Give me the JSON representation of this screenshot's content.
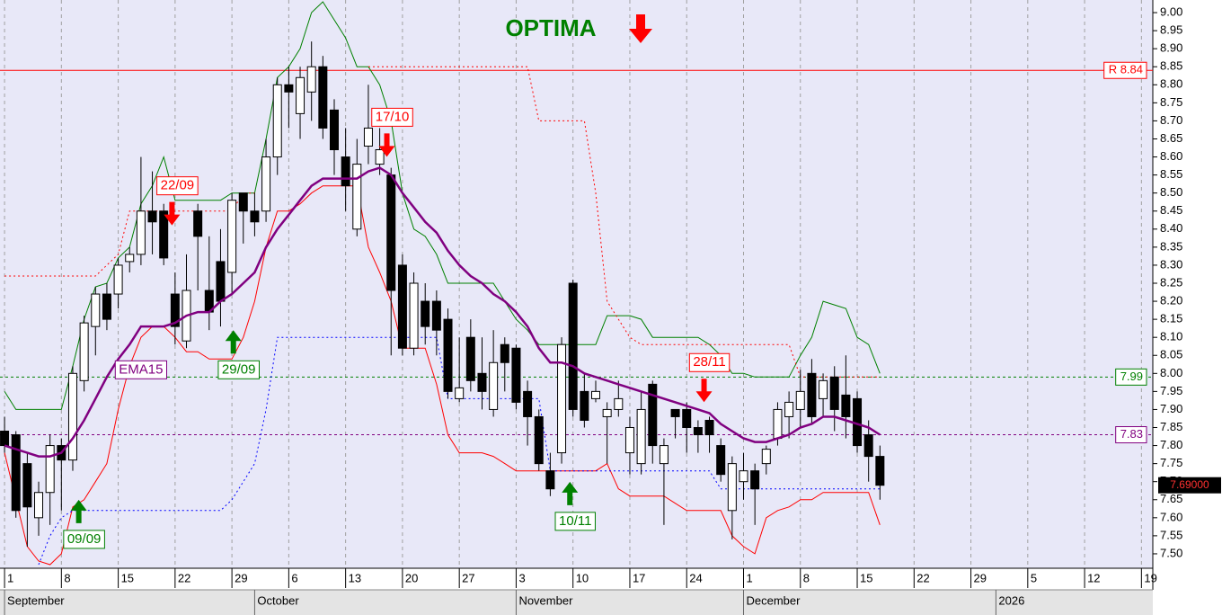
{
  "chart_data": {
    "type": "candlestick",
    "title": "OPTIMA",
    "x": [
      0,
      1,
      2,
      3,
      4,
      5,
      6,
      7,
      8,
      9,
      10,
      11,
      12,
      13,
      14,
      15,
      16,
      17,
      18,
      19,
      20,
      21,
      22,
      23,
      24,
      25,
      26,
      27,
      28,
      29,
      30,
      31,
      32,
      33,
      34,
      35,
      36,
      37,
      38,
      39,
      40,
      41,
      42,
      43,
      44,
      45,
      46,
      47,
      48,
      49,
      50,
      51,
      52,
      53,
      54,
      55,
      56,
      57,
      58,
      59,
      60,
      61,
      62,
      63,
      64,
      65,
      66,
      67,
      68,
      69,
      70,
      71,
      72,
      73,
      74,
      75,
      76,
      77
    ],
    "ohlc": {
      "open": [
        7.84,
        7.83,
        7.75,
        7.6,
        7.67,
        7.8,
        7.76,
        7.98,
        8.13,
        8.22,
        8.22,
        8.31,
        8.33,
        8.45,
        8.45,
        8.22,
        8.09,
        8.45,
        8.23,
        8.31,
        8.28,
        8.5,
        8.45,
        8.45,
        8.6,
        8.8,
        8.72,
        8.78,
        8.85,
        8.73,
        8.6,
        8.4,
        8.63,
        8.58,
        8.55,
        8.3,
        8.07,
        8.2,
        8.2,
        8.15,
        7.93,
        8.1,
        8.0,
        7.9,
        8.08,
        8.07,
        7.95,
        7.88,
        7.73,
        7.78,
        8.25,
        7.95,
        7.93,
        7.88,
        7.9,
        7.78,
        7.75,
        7.97,
        7.75,
        7.9,
        7.9,
        7.85,
        7.87,
        7.8,
        7.62,
        7.7,
        7.73,
        7.75,
        7.82,
        7.88,
        7.9,
        8.0,
        7.93,
        7.99,
        7.94,
        7.93,
        7.83,
        7.77
      ],
      "high": [
        7.88,
        7.84,
        7.78,
        7.7,
        7.83,
        7.82,
        8.02,
        8.16,
        8.24,
        8.25,
        8.32,
        8.35,
        8.6,
        8.56,
        8.47,
        8.28,
        8.33,
        8.47,
        8.38,
        8.4,
        8.5,
        8.5,
        8.5,
        8.65,
        8.82,
        8.85,
        8.85,
        8.92,
        8.88,
        8.76,
        8.68,
        8.65,
        8.8,
        8.68,
        8.57,
        8.33,
        8.28,
        8.25,
        8.23,
        8.18,
        8.1,
        8.15,
        8.1,
        8.12,
        8.1,
        8.08,
        7.98,
        7.9,
        7.78,
        8.1,
        8.26,
        8.0,
        7.98,
        7.92,
        7.98,
        7.88,
        7.95,
        7.98,
        7.82,
        7.9,
        7.92,
        7.87,
        7.88,
        7.82,
        7.77,
        7.78,
        7.75,
        7.8,
        7.92,
        7.95,
        8.01,
        8.04,
        8.0,
        8.02,
        8.05,
        7.95,
        7.87,
        7.8
      ],
      "low": [
        7.78,
        7.6,
        7.52,
        7.55,
        7.58,
        7.62,
        7.73,
        7.95,
        8.05,
        8.12,
        8.18,
        8.28,
        8.3,
        8.33,
        8.3,
        8.08,
        8.07,
        8.23,
        8.12,
        8.13,
        8.22,
        8.36,
        8.38,
        8.42,
        8.55,
        8.68,
        8.65,
        8.7,
        8.65,
        8.55,
        8.45,
        8.38,
        8.58,
        8.55,
        8.05,
        8.05,
        8.05,
        8.08,
        8.05,
        7.93,
        7.92,
        7.95,
        7.9,
        7.88,
        7.95,
        7.9,
        7.8,
        7.73,
        7.66,
        7.75,
        7.88,
        7.85,
        7.92,
        7.75,
        7.88,
        7.72,
        7.72,
        7.75,
        7.58,
        7.82,
        7.78,
        7.78,
        7.78,
        7.7,
        7.54,
        7.65,
        7.58,
        7.72,
        7.8,
        7.82,
        7.85,
        7.86,
        7.88,
        7.84,
        7.82,
        7.78,
        7.7,
        7.65
      ],
      "close": [
        7.8,
        7.62,
        7.63,
        7.67,
        7.8,
        7.76,
        8.0,
        8.14,
        8.22,
        8.15,
        8.3,
        8.33,
        8.45,
        8.42,
        8.32,
        8.13,
        8.23,
        8.38,
        8.17,
        8.2,
        8.48,
        8.45,
        8.42,
        8.6,
        8.8,
        8.78,
        8.82,
        8.85,
        8.68,
        8.62,
        8.52,
        8.58,
        8.68,
        8.62,
        8.23,
        8.07,
        8.25,
        8.13,
        8.12,
        7.95,
        7.96,
        7.98,
        7.95,
        8.03,
        8.03,
        7.92,
        7.88,
        7.75,
        7.68,
        8.08,
        7.9,
        7.87,
        7.95,
        7.9,
        7.93,
        7.85,
        7.9,
        7.8,
        7.8,
        7.88,
        7.85,
        7.83,
        7.83,
        7.72,
        7.75,
        7.73,
        7.68,
        7.79,
        7.9,
        7.92,
        7.95,
        7.88,
        7.98,
        7.9,
        7.88,
        7.8,
        7.77,
        7.69
      ]
    },
    "series": [
      {
        "name": "EMA15",
        "color": "#800080",
        "width": 2.5,
        "dash": "none",
        "values": [
          7.8,
          7.79,
          7.78,
          7.77,
          7.77,
          7.78,
          7.82,
          7.87,
          7.93,
          7.99,
          8.04,
          8.08,
          8.13,
          8.13,
          8.13,
          8.14,
          8.16,
          8.17,
          8.17,
          8.2,
          8.22,
          8.25,
          8.28,
          8.35,
          8.4,
          8.44,
          8.48,
          8.52,
          8.54,
          8.54,
          8.54,
          8.54,
          8.56,
          8.57,
          8.55,
          8.5,
          8.46,
          8.42,
          8.39,
          8.34,
          8.3,
          8.27,
          8.25,
          8.22,
          8.2,
          8.17,
          8.13,
          8.07,
          8.03,
          8.03,
          8.02,
          8.0,
          7.99,
          7.98,
          7.97,
          7.96,
          7.95,
          7.94,
          7.93,
          7.92,
          7.91,
          7.9,
          7.89,
          7.86,
          7.84,
          7.82,
          7.81,
          7.81,
          7.82,
          7.83,
          7.85,
          7.86,
          7.88,
          7.88,
          7.87,
          7.86,
          7.85,
          7.83
        ]
      },
      {
        "color": "#008000",
        "width": 1,
        "dash": "none",
        "values": [
          7.95,
          7.9,
          7.9,
          7.9,
          7.9,
          7.9,
          8.02,
          8.15,
          8.24,
          8.25,
          8.32,
          8.35,
          8.47,
          8.52,
          8.6,
          8.48,
          8.48,
          8.48,
          8.48,
          8.48,
          8.5,
          8.5,
          8.5,
          8.65,
          8.82,
          8.85,
          8.9,
          9.0,
          9.03,
          8.98,
          8.93,
          8.85,
          8.85,
          8.8,
          8.7,
          8.5,
          8.4,
          8.38,
          8.33,
          8.25,
          8.25,
          8.25,
          8.25,
          8.25,
          8.2,
          8.15,
          8.12,
          8.08,
          8.08,
          8.08,
          8.08,
          8.08,
          8.08,
          8.16,
          8.16,
          8.16,
          8.15,
          8.1,
          8.1,
          8.1,
          8.1,
          8.1,
          8.08,
          8.05,
          8.0,
          8.0,
          7.99,
          7.99,
          7.99,
          7.99,
          8.05,
          8.1,
          8.2,
          8.19,
          8.18,
          8.1,
          8.08,
          8.0
        ]
      },
      {
        "color": "#ff0000",
        "width": 1,
        "dash": "none",
        "values": [
          7.78,
          7.65,
          7.52,
          7.48,
          7.47,
          7.5,
          7.63,
          7.65,
          7.7,
          7.75,
          7.9,
          8.02,
          8.1,
          8.13,
          8.13,
          8.1,
          8.06,
          8.06,
          8.04,
          8.04,
          8.04,
          8.1,
          8.2,
          8.35,
          8.45,
          8.45,
          8.47,
          8.5,
          8.52,
          8.52,
          8.52,
          8.52,
          8.35,
          8.28,
          8.2,
          8.07,
          8.07,
          8.07,
          7.97,
          7.83,
          7.78,
          7.78,
          7.78,
          7.77,
          7.75,
          7.73,
          7.73,
          7.73,
          7.73,
          7.73,
          7.73,
          7.73,
          7.73,
          7.75,
          7.68,
          7.66,
          7.66,
          7.66,
          7.66,
          7.64,
          7.62,
          7.62,
          7.62,
          7.62,
          7.55,
          7.52,
          7.5,
          7.6,
          7.62,
          7.63,
          7.65,
          7.65,
          7.67,
          7.67,
          7.67,
          7.67,
          7.67,
          7.58
        ]
      },
      {
        "color": "#ff0000",
        "width": 1,
        "dash": "2,3",
        "values": [
          8.27,
          8.27,
          8.27,
          8.27,
          8.27,
          8.27,
          8.27,
          8.27,
          8.27,
          8.3,
          8.33,
          8.45,
          8.45,
          8.45,
          8.45,
          8.45,
          8.45,
          8.45,
          8.45,
          8.45,
          8.45,
          8.5,
          8.5,
          null,
          null,
          null,
          null,
          null,
          null,
          null,
          null,
          null,
          8.85,
          8.85,
          8.85,
          8.85,
          8.85,
          8.85,
          8.85,
          8.85,
          8.85,
          8.85,
          8.85,
          8.85,
          8.85,
          8.85,
          8.85,
          8.7,
          8.7,
          8.7,
          8.7,
          8.7,
          8.5,
          8.2,
          8.15,
          8.1,
          8.08,
          8.08,
          8.08,
          8.08,
          8.08,
          8.08,
          8.08,
          8.08,
          8.08,
          8.08,
          8.08,
          8.08,
          8.08,
          8.08,
          7.99,
          7.99,
          7.99,
          7.99,
          7.99,
          7.99,
          7.99,
          7.99
        ]
      },
      {
        "color": "#0000ff",
        "width": 1,
        "dash": "2,3",
        "values": [
          null,
          null,
          null,
          7.47,
          7.55,
          7.6,
          7.62,
          7.62,
          7.62,
          7.62,
          7.62,
          7.62,
          7.62,
          7.62,
          7.62,
          7.62,
          7.62,
          7.62,
          7.62,
          7.62,
          7.65,
          7.7,
          7.75,
          7.9,
          8.1,
          8.1,
          8.1,
          8.1,
          8.1,
          8.1,
          8.1,
          8.1,
          8.1,
          8.1,
          8.1,
          8.1,
          8.1,
          8.1,
          8.1,
          7.93,
          7.93,
          7.93,
          7.93,
          7.93,
          7.93,
          7.93,
          7.93,
          7.93,
          7.73,
          7.73,
          7.73,
          7.73,
          7.73,
          7.73,
          7.73,
          7.73,
          7.73,
          7.73,
          7.73,
          7.73,
          7.73,
          7.73,
          7.73,
          7.68,
          7.68,
          7.68,
          7.68,
          7.68,
          7.68,
          7.68,
          7.68,
          7.68,
          7.68,
          7.68,
          7.68,
          7.68,
          7.68,
          7.68
        ]
      }
    ],
    "levels": [
      {
        "value": 8.84,
        "label": "R 8.84",
        "color": "#ff0000",
        "dash": "none"
      },
      {
        "value": 7.99,
        "label": "7.99",
        "color": "#008000",
        "dash": "3,3"
      },
      {
        "value": 7.83,
        "label": "7.83",
        "color": "#800080",
        "dash": "3,3"
      }
    ],
    "last_price": {
      "value": 7.69,
      "label": "7.69000"
    },
    "annotations": [
      {
        "text": "22/09",
        "x": 15.2,
        "y": 8.52,
        "color": "#ff0000",
        "arrow": "down"
      },
      {
        "text": "17/10",
        "x": 34.1,
        "y": 8.71,
        "color": "#ff0000",
        "arrow": "down"
      },
      {
        "text": "28/11",
        "x": 62.0,
        "y": 8.03,
        "color": "#ff0000",
        "arrow": "down"
      },
      {
        "text": "29/09",
        "x": 20.6,
        "y": 8.01,
        "color": "#008000",
        "arrow": "up"
      },
      {
        "text": "09/09",
        "x": 7.0,
        "y": 7.54,
        "color": "#008000",
        "arrow": "up"
      },
      {
        "text": "10/11",
        "x": 50.2,
        "y": 7.59,
        "color": "#008000",
        "arrow": "up"
      },
      {
        "text": "EMA15",
        "x": 12.0,
        "y": 8.01,
        "color": "#800080",
        "arrow": "none"
      }
    ],
    "xlim": [
      -0.4,
      101
    ],
    "ylim": [
      7.46,
      9.035
    ],
    "xticks": [
      {
        "value": 0,
        "label": "1"
      },
      {
        "value": 5,
        "label": "8"
      },
      {
        "value": 10,
        "label": "15"
      },
      {
        "value": 15,
        "label": "22"
      },
      {
        "value": 20,
        "label": "29"
      },
      {
        "value": 25,
        "label": "6"
      },
      {
        "value": 30,
        "label": "13"
      },
      {
        "value": 35,
        "label": "20"
      },
      {
        "value": 40,
        "label": "27"
      },
      {
        "value": 45,
        "label": "3"
      },
      {
        "value": 50,
        "label": "10"
      },
      {
        "value": 55,
        "label": "17"
      },
      {
        "value": 60,
        "label": "24"
      },
      {
        "value": 65,
        "label": "1"
      },
      {
        "value": 70,
        "label": "8"
      },
      {
        "value": 75,
        "label": "15"
      },
      {
        "value": 80,
        "label": "22"
      },
      {
        "value": 85,
        "label": "29"
      },
      {
        "value": 90,
        "label": "5"
      },
      {
        "value": 95,
        "label": "12"
      },
      {
        "value": 100,
        "label": "19"
      }
    ],
    "months": [
      {
        "value": 0,
        "label": "September"
      },
      {
        "value": 22,
        "label": "October"
      },
      {
        "value": 45,
        "label": "November"
      },
      {
        "value": 65,
        "label": "December"
      },
      {
        "value": 87.2,
        "label": "2026"
      }
    ],
    "yticks": [
      {
        "value": 7.5,
        "label": "7.50"
      },
      {
        "value": 7.55,
        "label": "7.55"
      },
      {
        "value": 7.6,
        "label": "7.60"
      },
      {
        "value": 7.65,
        "label": "7.65"
      },
      {
        "value": 7.7,
        "label": "7.70"
      },
      {
        "value": 7.75,
        "label": "7.75"
      },
      {
        "value": 7.8,
        "label": "7.80"
      },
      {
        "value": 7.85,
        "label": "7.85"
      },
      {
        "value": 7.9,
        "label": "7.90"
      },
      {
        "value": 7.95,
        "label": "7.95"
      },
      {
        "value": 8.0,
        "label": "8.00"
      },
      {
        "value": 8.05,
        "label": "8.05"
      },
      {
        "value": 8.1,
        "label": "8.10"
      },
      {
        "value": 8.15,
        "label": "8.15"
      },
      {
        "value": 8.2,
        "label": "8.20"
      },
      {
        "value": 8.25,
        "label": "8.25"
      },
      {
        "value": 8.3,
        "label": "8.30"
      },
      {
        "value": 8.35,
        "label": "8.35"
      },
      {
        "value": 8.4,
        "label": "8.40"
      },
      {
        "value": 8.45,
        "label": "8.45"
      },
      {
        "value": 8.5,
        "label": "8.50"
      },
      {
        "value": 8.55,
        "label": "8.55"
      },
      {
        "value": 8.6,
        "label": "8.60"
      },
      {
        "value": 8.65,
        "label": "8.65"
      },
      {
        "value": 8.7,
        "label": "8.70"
      },
      {
        "value": 8.75,
        "label": "8.75"
      },
      {
        "value": 8.8,
        "label": "8.80"
      },
      {
        "value": 8.85,
        "label": "8.85"
      },
      {
        "value": 8.9,
        "label": "8.90"
      },
      {
        "value": 8.95,
        "label": "8.95"
      },
      {
        "value": 9.0,
        "label": "9.00"
      }
    ]
  }
}
